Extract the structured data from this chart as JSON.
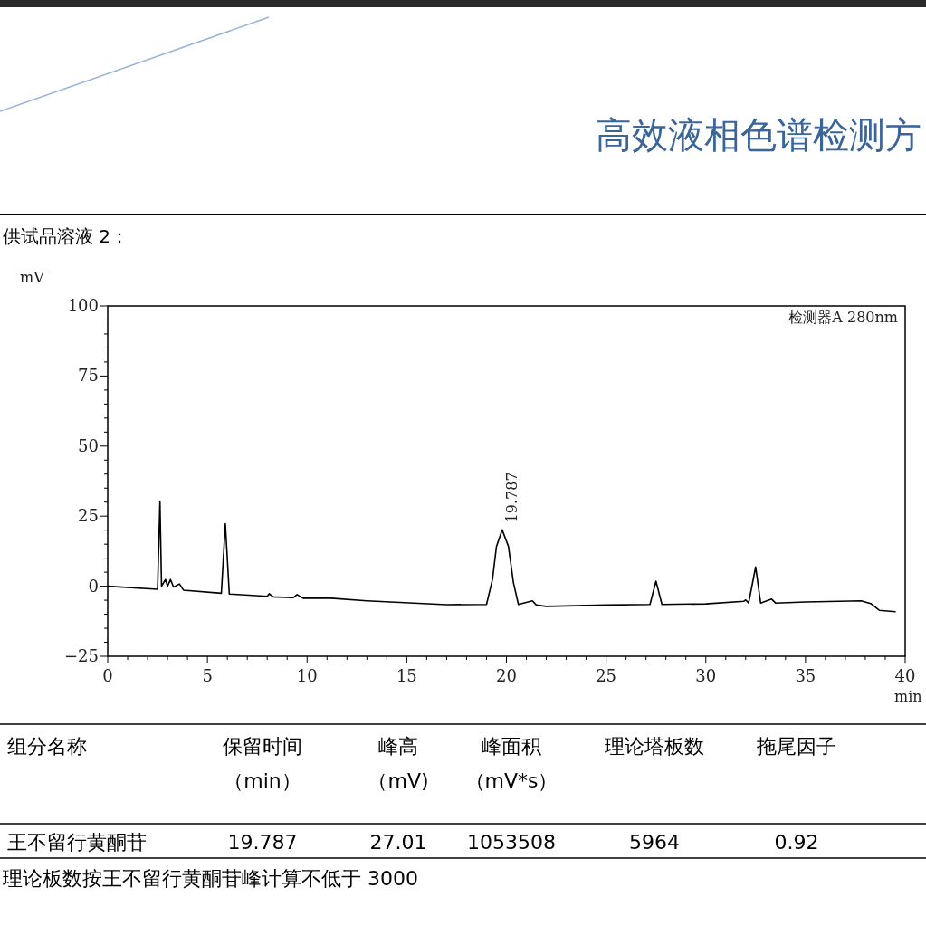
{
  "chart_data": {
    "type": "line",
    "title": "高效液相色谱检测方",
    "subtitle": "供试品溶液 2：",
    "xlabel": "min",
    "ylabel": "mV",
    "xlim": [
      0,
      40
    ],
    "xticks": [
      0,
      5,
      10,
      15,
      20,
      25,
      30,
      35,
      40
    ],
    "ylim": [
      -25,
      100
    ],
    "yticks": [
      -25,
      0,
      25,
      50,
      75,
      100
    ],
    "series": [
      {
        "color": "#000000",
        "x": [
          0,
          2.5,
          2.62,
          2.7,
          2.9,
          3.0,
          3.15,
          3.3,
          3.6,
          3.8,
          5.7,
          5.9,
          6.1,
          8.0,
          8.1,
          8.3,
          9.3,
          9.5,
          9.8,
          11.2,
          13,
          17,
          19.0,
          19.3,
          19.5,
          19.787,
          20.1,
          20.35,
          20.6,
          21.3,
          21.5,
          22,
          25,
          27.2,
          27.5,
          27.8,
          30,
          31.9,
          32.0,
          32.15,
          32.5,
          32.75,
          33.3,
          33.5,
          35,
          37.8,
          38.3,
          38.7,
          39.5
        ],
        "values": [
          0,
          -1.1,
          30.4,
          0,
          2.4,
          0,
          2.4,
          -0.3,
          0.8,
          -1.4,
          -2.5,
          22.3,
          -2.8,
          -3.6,
          -2.7,
          -3.8,
          -4.1,
          -3,
          -4.3,
          -4.3,
          -5.2,
          -6.6,
          -6.5,
          2.4,
          14.2,
          20.1,
          14.2,
          1.3,
          -6.5,
          -5.2,
          -6.7,
          -7.2,
          -6.7,
          -6.5,
          1.8,
          -6.5,
          -6.3,
          -5.4,
          -4.9,
          -6,
          6.9,
          -6,
          -4.6,
          -6,
          -5.6,
          -5.2,
          -6.3,
          -8.6,
          -9.1
        ]
      }
    ],
    "annotations": [
      {
        "text": "19.787",
        "x": 19.787,
        "y": 20.1
      },
      "检测器A 280nm",
      "组分名称",
      "保留时间",
      "峰高",
      "峰面积",
      "理论塔板数",
      "拖尾因子",
      "（min）",
      "（mV)",
      "（mV*s）",
      "王不留行黄酮苷",
      "19.787",
      "27.01",
      "1053508",
      "5964",
      "0.92",
      "理论板数按王不留行黄酮苷峰计算不低于 3000"
    ]
  }
}
